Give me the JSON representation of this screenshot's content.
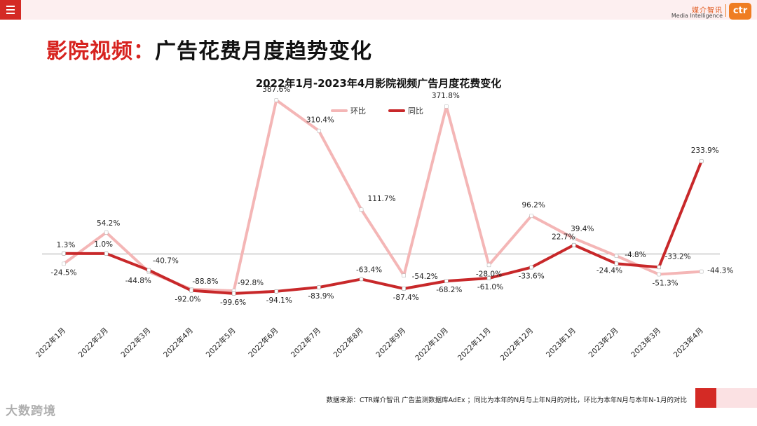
{
  "header": {
    "menu_icon": "hamburger-icon",
    "logo_cn": "媒介智讯",
    "logo_en": "Media Intelligence",
    "logo_badge": "ctr",
    "accent_color": "#d42a25"
  },
  "headline": {
    "prefix": "影院视频：",
    "suffix": "广告花费月度趋势变化"
  },
  "chart_data": {
    "type": "line",
    "title": "2022年1月-2023年4月影院视频广告月度花费变化",
    "categories": [
      "2022年1月",
      "2022年2月",
      "2022年3月",
      "2022年4月",
      "2022年5月",
      "2022年6月",
      "2022年7月",
      "2022年8月",
      "2022年9月",
      "2022年10月",
      "2022年11月",
      "2022年12月",
      "2023年1月",
      "2023年2月",
      "2023年3月",
      "2023年4月"
    ],
    "series": [
      {
        "name": "环比",
        "color": "#f4b6b6",
        "values": [
          -24.5,
          54.2,
          -44.8,
          -88.8,
          -92.8,
          387.6,
          310.4,
          111.7,
          -54.2,
          371.8,
          -28.0,
          96.2,
          39.4,
          -4.8,
          -51.3,
          -44.3
        ],
        "labels": [
          "-24.5%",
          "54.2%",
          "-44.8%",
          "-88.8%",
          "-92.8%",
          "387.6%",
          "310.4%",
          "111.7%",
          "-54.2%",
          "371.8%",
          "-28.0%",
          "96.2%",
          "39.4%",
          "-4.8%",
          "-51.3%",
          "-44.3%"
        ]
      },
      {
        "name": "同比",
        "color": "#c8282a",
        "values": [
          1.3,
          1.0,
          -40.7,
          -92.0,
          -99.6,
          -94.1,
          -83.9,
          -63.4,
          -87.4,
          -68.2,
          -61.0,
          -33.6,
          22.7,
          -24.4,
          -33.2,
          233.9
        ],
        "labels": [
          "1.3%",
          "1.0%",
          "-40.7%",
          "-92.0%",
          "-99.6%",
          "-94.1%",
          "-83.9%",
          "-63.4%",
          "-87.4%",
          "-68.2%",
          "-61.0%",
          "-33.6%",
          "22.7%",
          "-24.4%",
          "-33.2%",
          "233.9%"
        ]
      }
    ],
    "legend_position": "top-center",
    "grid": false,
    "ylim": [
      -100,
      400
    ]
  },
  "footer": {
    "source": "数据来源：CTR媒介智讯 广告监测数据库AdEx ；同比为本年的N月与上年N月的对比，环比为本年N月与本年N-1月的对比",
    "watermark": "大数跨境"
  }
}
